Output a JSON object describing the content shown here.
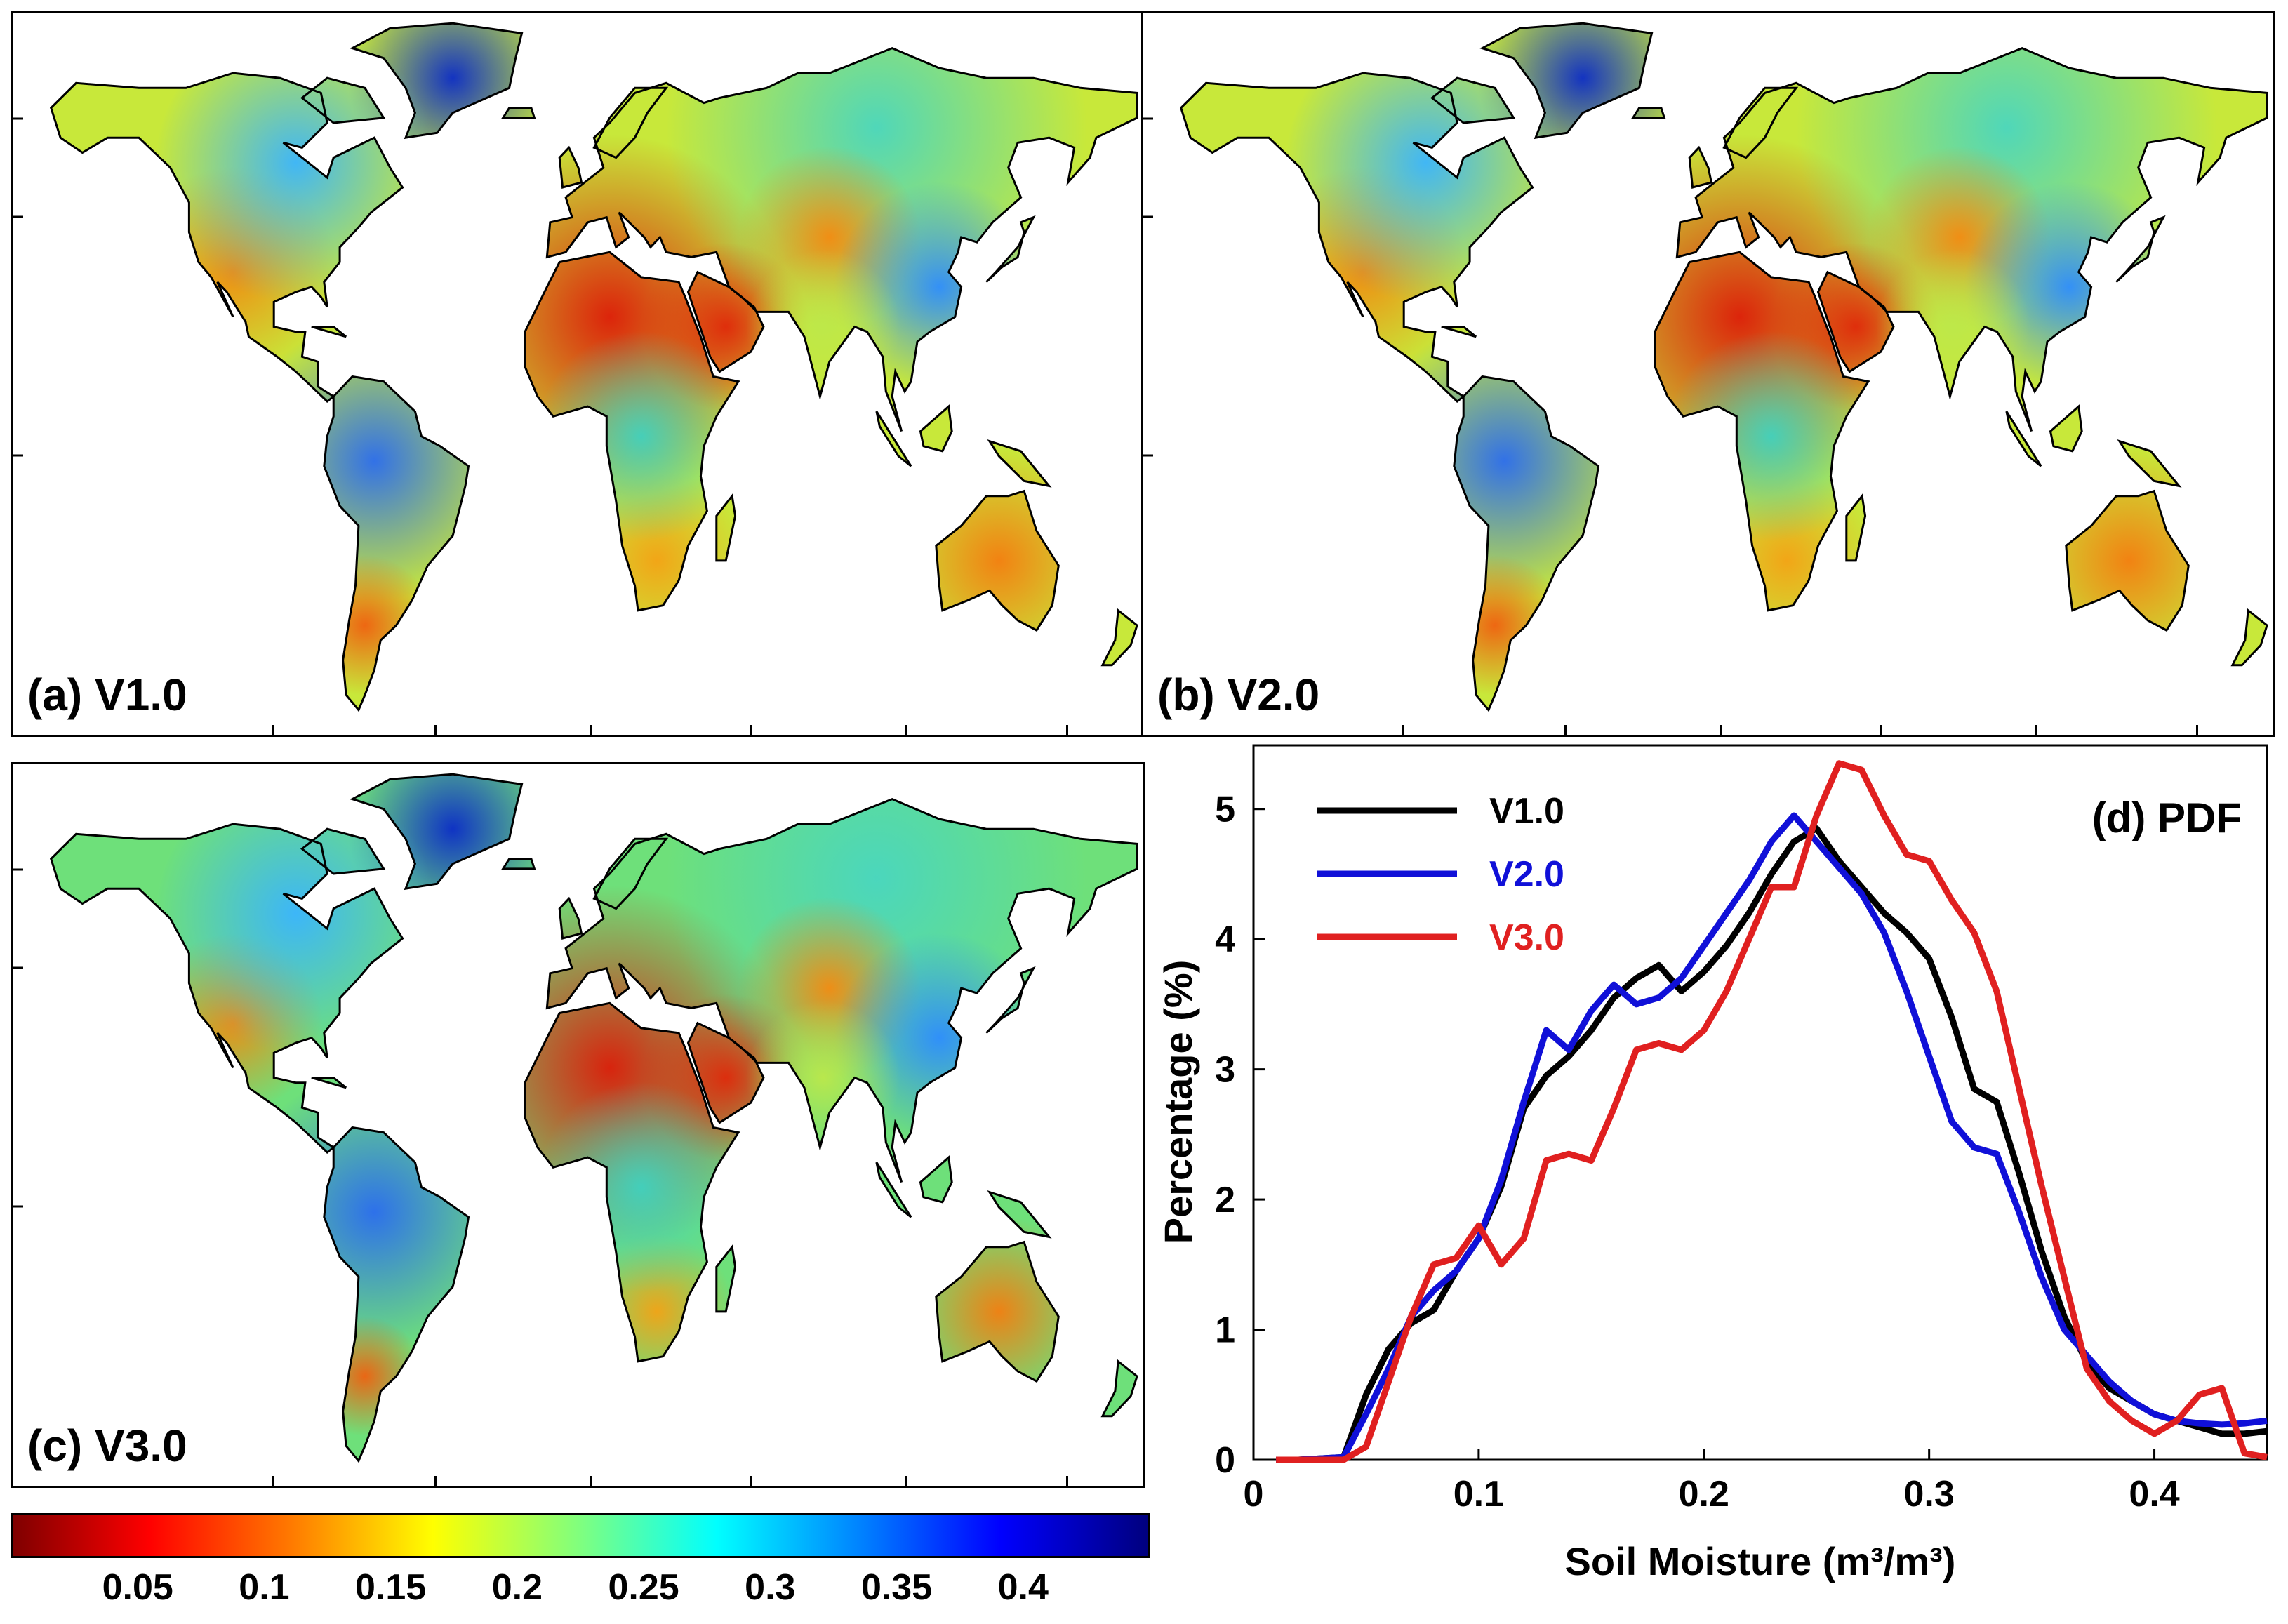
{
  "panels": [
    {
      "id": "a",
      "label": "(a) V1.0"
    },
    {
      "id": "b",
      "label": "(b) V2.0"
    },
    {
      "id": "c",
      "label": "(c) V3.0"
    }
  ],
  "colorbar": {
    "ticks": [
      "0.05",
      "0.1",
      "0.15",
      "0.2",
      "0.25",
      "0.3",
      "0.35",
      "0.4"
    ],
    "tick_values": [
      0.05,
      0.1,
      0.15,
      0.2,
      0.25,
      0.3,
      0.35,
      0.4
    ],
    "range": [
      0.0,
      0.45
    ],
    "colormap": "jet-reversed"
  },
  "chart_data": {
    "type": "line",
    "title": "(d) PDF",
    "xlabel": "Soil Moisture (m³/m³)",
    "ylabel": "Percentage (%)",
    "xlim": [
      0,
      0.45
    ],
    "ylim": [
      0,
      5.5
    ],
    "xticks": [
      "0",
      "0.1",
      "0.2",
      "0.3",
      "0.4"
    ],
    "xtick_values": [
      0,
      0.1,
      0.2,
      0.3,
      0.4
    ],
    "yticks": [
      "0",
      "1",
      "2",
      "3",
      "4",
      "5"
    ],
    "ytick_values": [
      0,
      1,
      2,
      3,
      4,
      5
    ],
    "legend_position": "top-left",
    "grid": false,
    "series": [
      {
        "name": "V1.0",
        "color": "#000000",
        "x": [
          0.01,
          0.02,
          0.03,
          0.04,
          0.05,
          0.06,
          0.07,
          0.08,
          0.09,
          0.1,
          0.11,
          0.12,
          0.13,
          0.14,
          0.15,
          0.16,
          0.17,
          0.18,
          0.19,
          0.2,
          0.21,
          0.22,
          0.23,
          0.24,
          0.25,
          0.26,
          0.27,
          0.28,
          0.29,
          0.3,
          0.31,
          0.32,
          0.33,
          0.34,
          0.35,
          0.36,
          0.37,
          0.38,
          0.39,
          0.4,
          0.41,
          0.42,
          0.43,
          0.44,
          0.45
        ],
        "y": [
          0.0,
          0.0,
          0.01,
          0.02,
          0.5,
          0.85,
          1.05,
          1.15,
          1.45,
          1.7,
          2.1,
          2.7,
          2.95,
          3.1,
          3.3,
          3.55,
          3.7,
          3.8,
          3.6,
          3.75,
          3.95,
          4.2,
          4.5,
          4.75,
          4.85,
          4.6,
          4.4,
          4.2,
          4.05,
          3.85,
          3.4,
          2.85,
          2.75,
          2.2,
          1.6,
          1.1,
          0.75,
          0.55,
          0.45,
          0.35,
          0.3,
          0.25,
          0.2,
          0.2,
          0.22
        ]
      },
      {
        "name": "V2.0",
        "color": "#1010d8",
        "x": [
          0.01,
          0.02,
          0.03,
          0.04,
          0.05,
          0.06,
          0.07,
          0.08,
          0.09,
          0.1,
          0.11,
          0.12,
          0.13,
          0.14,
          0.15,
          0.16,
          0.17,
          0.18,
          0.19,
          0.2,
          0.21,
          0.22,
          0.23,
          0.24,
          0.25,
          0.26,
          0.27,
          0.28,
          0.29,
          0.3,
          0.31,
          0.32,
          0.33,
          0.34,
          0.35,
          0.36,
          0.37,
          0.38,
          0.39,
          0.4,
          0.41,
          0.42,
          0.43,
          0.44,
          0.45
        ],
        "y": [
          0.0,
          0.0,
          0.01,
          0.02,
          0.35,
          0.7,
          1.1,
          1.3,
          1.45,
          1.7,
          2.15,
          2.75,
          3.3,
          3.15,
          3.45,
          3.65,
          3.5,
          3.55,
          3.7,
          3.95,
          4.2,
          4.45,
          4.75,
          4.95,
          4.75,
          4.55,
          4.35,
          4.05,
          3.6,
          3.1,
          2.6,
          2.4,
          2.35,
          1.9,
          1.4,
          1.0,
          0.8,
          0.6,
          0.45,
          0.35,
          0.3,
          0.28,
          0.27,
          0.28,
          0.3
        ]
      },
      {
        "name": "V3.0",
        "color": "#e02020",
        "x": [
          0.01,
          0.02,
          0.03,
          0.04,
          0.05,
          0.06,
          0.07,
          0.08,
          0.09,
          0.1,
          0.11,
          0.12,
          0.13,
          0.14,
          0.15,
          0.16,
          0.17,
          0.18,
          0.19,
          0.2,
          0.21,
          0.22,
          0.23,
          0.24,
          0.25,
          0.26,
          0.27,
          0.28,
          0.29,
          0.3,
          0.31,
          0.32,
          0.33,
          0.34,
          0.35,
          0.36,
          0.37,
          0.38,
          0.39,
          0.4,
          0.41,
          0.42,
          0.43,
          0.44,
          0.45
        ],
        "y": [
          0.0,
          0.0,
          0.0,
          0.0,
          0.1,
          0.6,
          1.1,
          1.5,
          1.55,
          1.8,
          1.5,
          1.7,
          2.3,
          2.35,
          2.3,
          2.7,
          3.15,
          3.2,
          3.15,
          3.3,
          3.6,
          4.0,
          4.4,
          4.4,
          4.95,
          5.35,
          5.3,
          4.95,
          4.65,
          4.6,
          4.3,
          4.05,
          3.6,
          2.85,
          2.1,
          1.4,
          0.7,
          0.45,
          0.3,
          0.2,
          0.3,
          0.5,
          0.55,
          0.05,
          0.02
        ]
      }
    ]
  }
}
